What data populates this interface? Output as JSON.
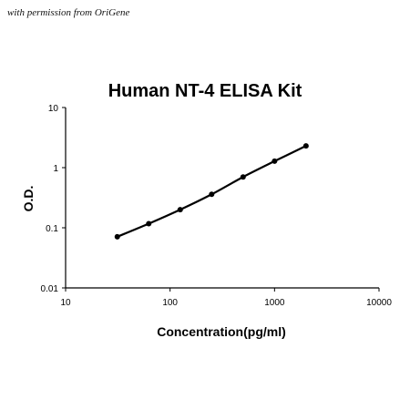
{
  "credit": "with permission from OriGene",
  "colors": {
    "line": "#000000",
    "axis": "#000000",
    "background": "#ffffff"
  },
  "chart_data": {
    "type": "line",
    "title": "Human NT-4 ELISA Kit",
    "xlabel": "Concentration(pg/ml)",
    "ylabel": "O.D.",
    "x_scale": "log",
    "y_scale": "log",
    "xlim": [
      10,
      10000
    ],
    "ylim": [
      0.01,
      10
    ],
    "x_ticks": [
      "10",
      "100",
      "1000",
      "10000"
    ],
    "y_ticks": [
      "0.01",
      "0.1",
      "1",
      "10"
    ],
    "grid": false,
    "legend": "none",
    "series": [
      {
        "x": [
          31.25,
          62.5,
          125,
          250,
          500,
          1000,
          2000
        ],
        "y": [
          0.071,
          0.117,
          0.2,
          0.36,
          0.7,
          1.28,
          2.3
        ]
      }
    ]
  }
}
